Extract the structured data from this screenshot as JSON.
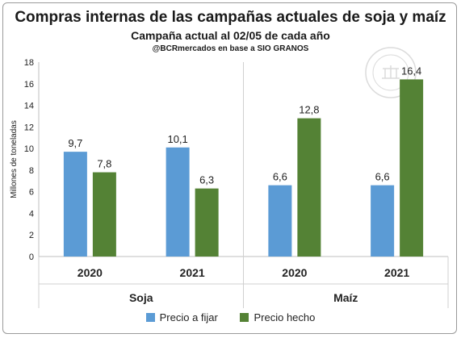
{
  "title": "Compras internas de las campañas actuales de soja y maíz",
  "subtitle": "Campaña actual al 02/05 de cada año",
  "source": "@BCRmercados en base a SIO GRANOS",
  "chart_data": {
    "type": "bar",
    "ylabel": "Millones de toneladas",
    "ylim": [
      0,
      18
    ],
    "yticks": [
      0,
      2,
      4,
      6,
      8,
      10,
      12,
      14,
      16,
      18
    ],
    "groups": [
      {
        "name": "Soja",
        "categories": [
          "2020",
          "2021"
        ]
      },
      {
        "name": "Maíz",
        "categories": [
          "2020",
          "2021"
        ]
      }
    ],
    "categories": [
      "2020",
      "2021",
      "2020",
      "2021"
    ],
    "series": [
      {
        "name": "Precio a fijar",
        "color": "#5b9bd5",
        "values": [
          9.7,
          10.1,
          6.6,
          6.6
        ],
        "labels": [
          "9,7",
          "10,1",
          "6,6",
          "6,6"
        ]
      },
      {
        "name": "Precio hecho",
        "color": "#548235",
        "values": [
          7.8,
          6.3,
          12.8,
          16.4
        ],
        "labels": [
          "7,8",
          "6,3",
          "12,8",
          "16,4"
        ]
      }
    ],
    "grid": false,
    "legend": "bottom"
  }
}
